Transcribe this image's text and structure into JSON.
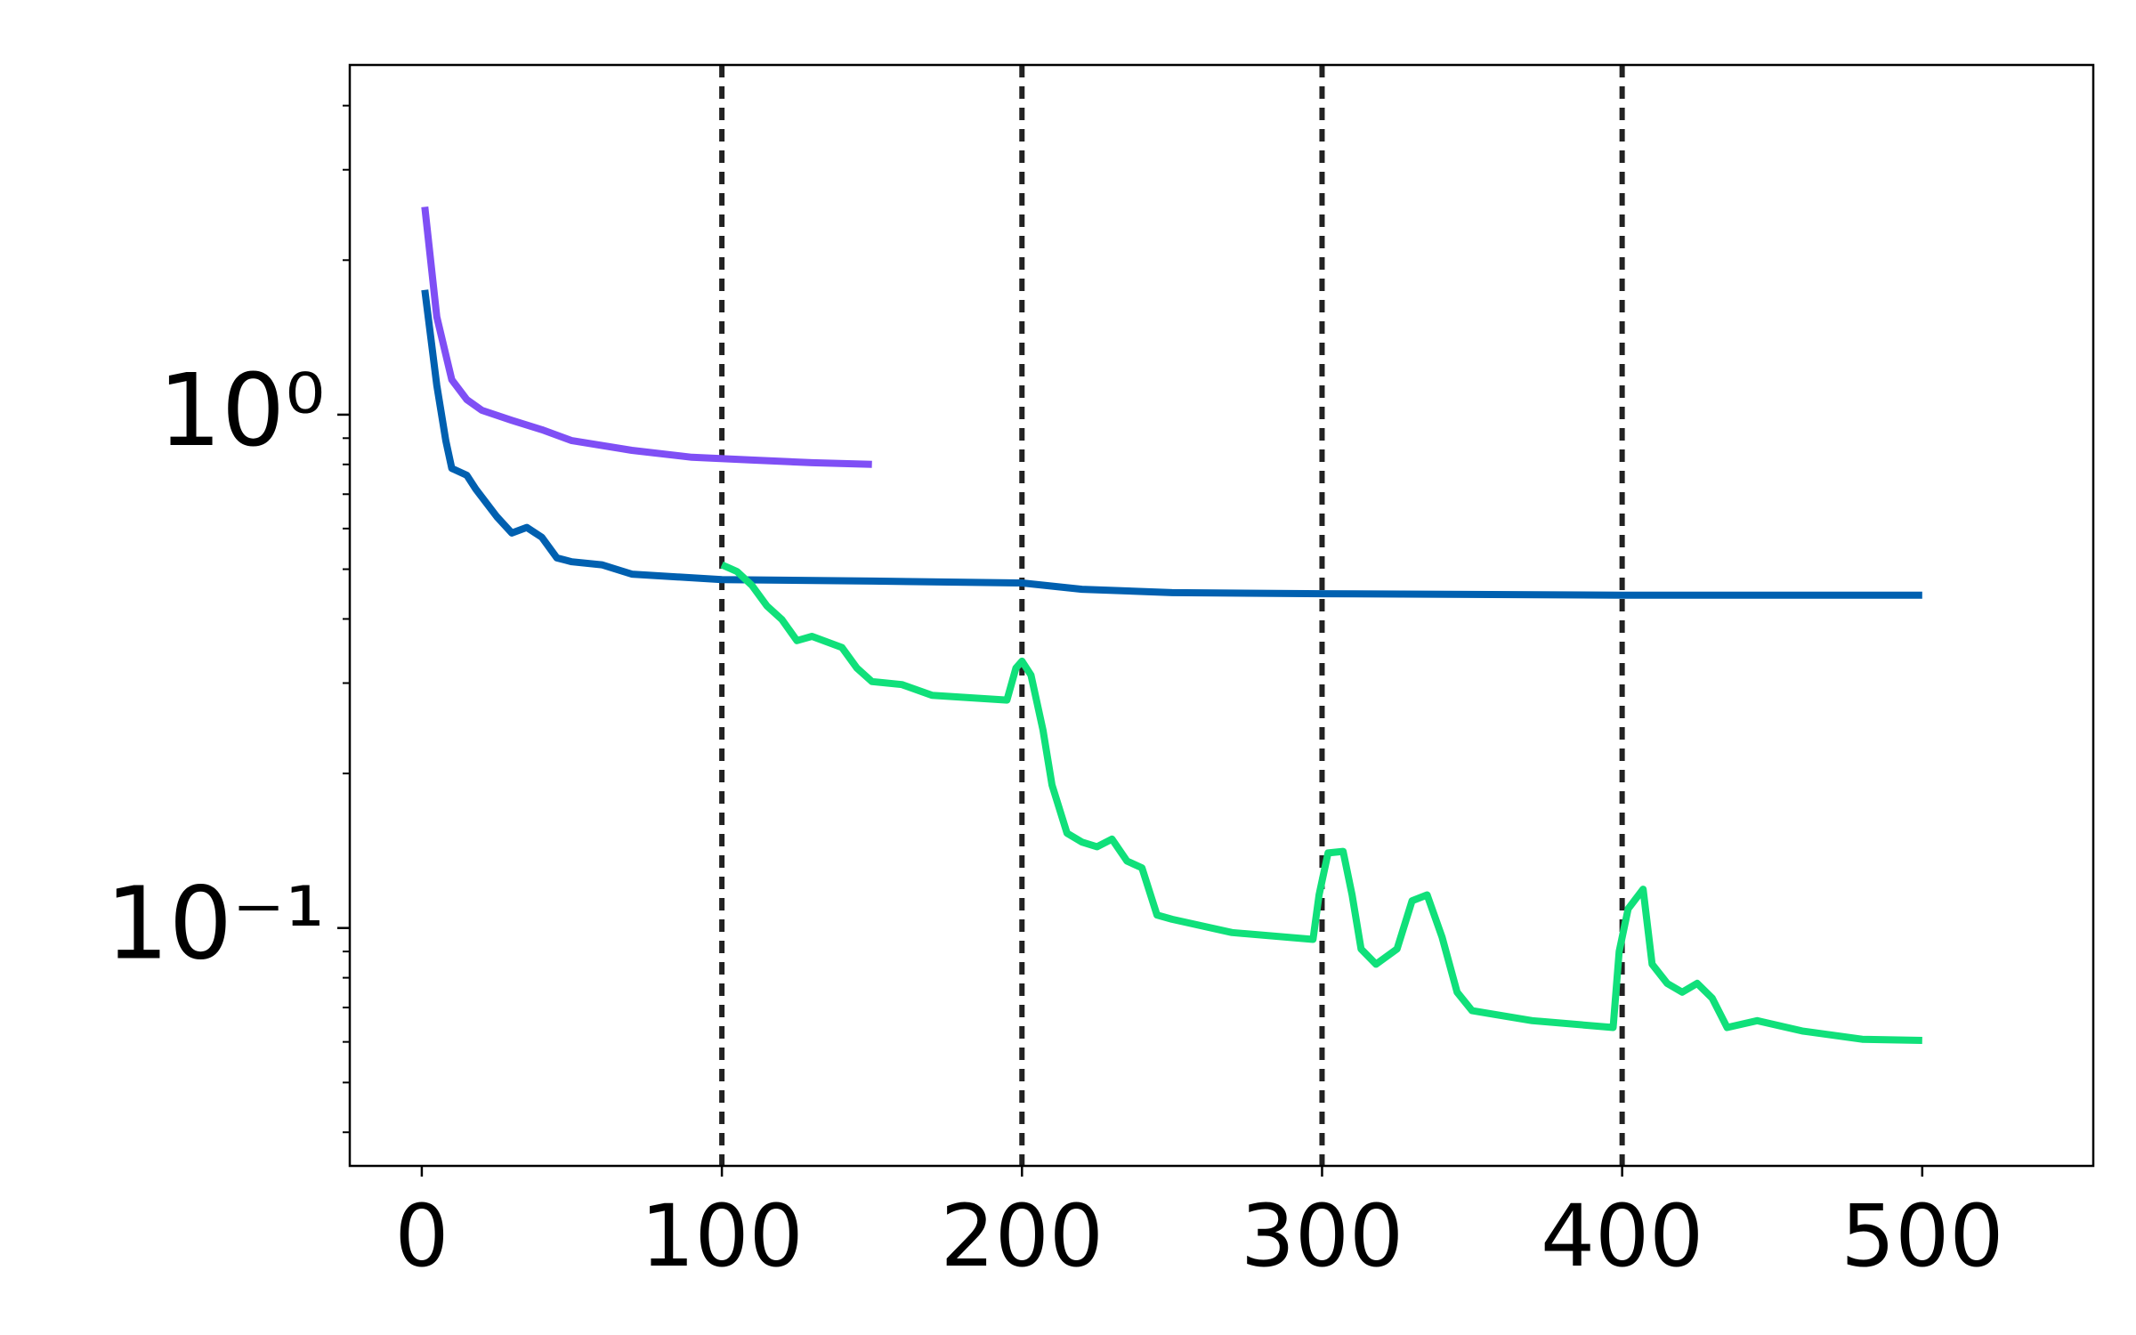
{
  "chart_data": {
    "type": "line",
    "xlim": [
      -24,
      557
    ],
    "ylim": [
      0.0344,
      4.8
    ],
    "y_scale": "log",
    "xticks": [
      0,
      100,
      200,
      300,
      400,
      500
    ],
    "yticks": [
      {
        "value": 0.1,
        "label": "10⁻¹"
      },
      {
        "value": 1,
        "label": "10⁰"
      }
    ],
    "yminor_ticks": [
      0.04,
      0.05,
      0.06,
      0.07,
      0.08,
      0.09,
      0.2,
      0.3,
      0.4,
      0.5,
      0.6,
      0.7,
      0.8,
      0.9,
      2,
      3,
      4
    ],
    "vlines": [
      100,
      200,
      300,
      400
    ],
    "vline_color": "#222222",
    "series": [
      {
        "color": "#7f4ff5",
        "x": [
          1,
          5,
          10,
          15,
          20,
          30,
          40,
          50,
          70,
          90,
          110,
          130,
          150
        ],
        "values": [
          2.54,
          1.55,
          1.17,
          1.07,
          1.02,
          0.975,
          0.935,
          0.89,
          0.852,
          0.826,
          0.816,
          0.806,
          0.8
        ]
      },
      {
        "color": "#0060b0",
        "x": [
          1,
          5,
          8,
          10,
          15,
          18,
          25,
          30,
          35,
          40,
          45,
          50,
          60,
          70,
          100,
          150,
          200,
          220,
          250,
          300,
          400,
          500
        ],
        "values": [
          1.75,
          1.14,
          0.89,
          0.786,
          0.762,
          0.716,
          0.633,
          0.588,
          0.603,
          0.577,
          0.526,
          0.517,
          0.51,
          0.489,
          0.477,
          0.474,
          0.47,
          0.457,
          0.45,
          0.448,
          0.445,
          0.445
        ]
      },
      {
        "color": "#10e07a",
        "x": [
          100,
          105,
          110,
          115,
          120,
          125,
          130,
          140,
          145,
          150,
          160,
          170,
          195,
          198,
          200,
          203,
          207,
          210,
          215,
          220,
          225,
          230,
          235,
          240,
          245,
          250,
          270,
          297,
          299,
          302,
          307,
          310,
          313,
          318,
          325,
          330,
          335,
          340,
          345,
          350,
          370,
          397,
          399,
          402,
          407,
          410,
          415,
          420,
          425,
          430,
          435,
          445,
          460,
          480,
          500
        ],
        "values": [
          0.51,
          0.495,
          0.465,
          0.424,
          0.399,
          0.363,
          0.37,
          0.352,
          0.321,
          0.302,
          0.298,
          0.284,
          0.278,
          0.321,
          0.331,
          0.311,
          0.243,
          0.19,
          0.153,
          0.147,
          0.144,
          0.149,
          0.135,
          0.131,
          0.106,
          0.104,
          0.098,
          0.095,
          0.116,
          0.14,
          0.141,
          0.116,
          0.091,
          0.085,
          0.091,
          0.113,
          0.116,
          0.096,
          0.075,
          0.069,
          0.066,
          0.064,
          0.09,
          0.109,
          0.119,
          0.085,
          0.078,
          0.075,
          0.078,
          0.073,
          0.064,
          0.066,
          0.063,
          0.0607,
          0.0604
        ]
      }
    ]
  }
}
